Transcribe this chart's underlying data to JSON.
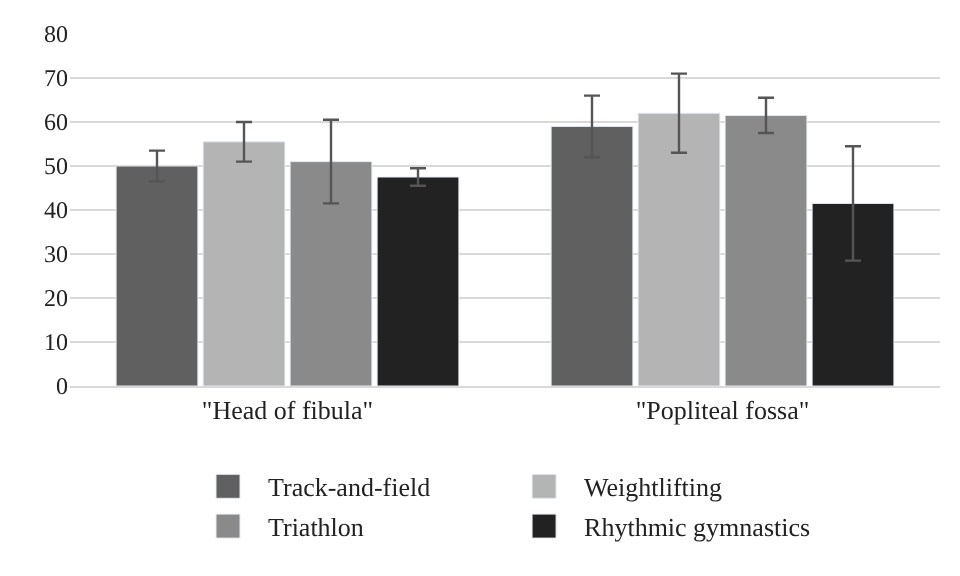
{
  "chart_data": {
    "type": "bar",
    "categories": [
      "\"Head of fibula\"",
      "\"Popliteal fossa\""
    ],
    "series": [
      {
        "name": "Track-and-field",
        "color": "#606060",
        "values": [
          50,
          59
        ],
        "errors": [
          3.5,
          7
        ]
      },
      {
        "name": "Weightlifting",
        "color": "#b4b4b4",
        "values": [
          55.5,
          62
        ],
        "errors": [
          4.5,
          9
        ]
      },
      {
        "name": "Triathlon",
        "color": "#8a8a8a",
        "values": [
          51,
          61.5
        ],
        "errors": [
          9.5,
          4
        ]
      },
      {
        "name": "Rhythmic gymnastics",
        "color": "#222222",
        "values": [
          47.5,
          41.5
        ],
        "errors": [
          2,
          13
        ]
      }
    ],
    "ylim": [
      0,
      80
    ],
    "yticks": [
      0,
      10,
      20,
      30,
      40,
      50,
      60,
      70,
      80
    ],
    "grid": "y",
    "legend": "bottom"
  }
}
